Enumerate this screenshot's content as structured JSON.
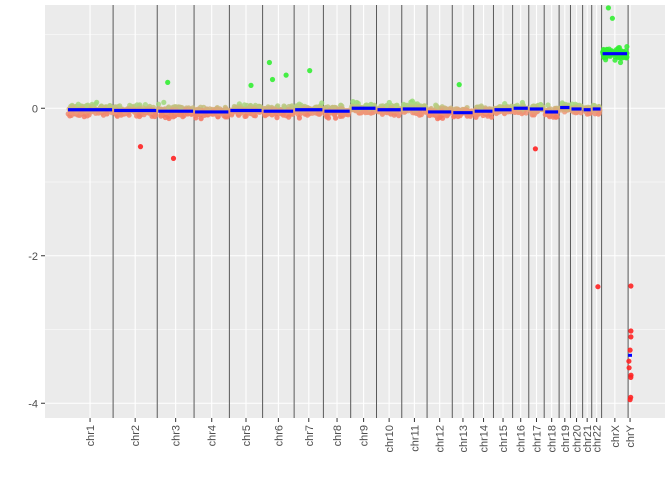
{
  "chart_data": {
    "type": "scatter",
    "title": "",
    "xlabel": "",
    "ylabel": "",
    "ylim": [
      -4.2,
      1.4
    ],
    "yticks": [
      -4,
      -2,
      0
    ],
    "grid": true,
    "legend": "none",
    "categories": [
      "chr1",
      "chr2",
      "chr3",
      "chr4",
      "chr5",
      "chr6",
      "chr7",
      "chr8",
      "chr9",
      "chr10",
      "chr11",
      "chr12",
      "chr13",
      "chr14",
      "chr15",
      "chr16",
      "chr17",
      "chr18",
      "chr19",
      "chr20",
      "chr21",
      "chr22",
      "chrX",
      "chrY"
    ],
    "segments": [
      {
        "chr": "chr1",
        "value": -0.02
      },
      {
        "chr": "chr2",
        "value": -0.03
      },
      {
        "chr": "chr3",
        "value": -0.04
      },
      {
        "chr": "chr4",
        "value": -0.05
      },
      {
        "chr": "chr5",
        "value": -0.03
      },
      {
        "chr": "chr6",
        "value": -0.04
      },
      {
        "chr": "chr7",
        "value": -0.02
      },
      {
        "chr": "chr8",
        "value": -0.04
      },
      {
        "chr": "chr9",
        "value": 0.0
      },
      {
        "chr": "chr10",
        "value": -0.02
      },
      {
        "chr": "chr11",
        "value": -0.01
      },
      {
        "chr": "chr12",
        "value": -0.05
      },
      {
        "chr": "chr13",
        "value": -0.06
      },
      {
        "chr": "chr14",
        "value": -0.04
      },
      {
        "chr": "chr15",
        "value": -0.02
      },
      {
        "chr": "chr16",
        "value": 0.0
      },
      {
        "chr": "chr17",
        "value": -0.01
      },
      {
        "chr": "chr18",
        "value": -0.05
      },
      {
        "chr": "chr19",
        "value": 0.01
      },
      {
        "chr": "chr20",
        "value": -0.01
      },
      {
        "chr": "chr21",
        "value": -0.02
      },
      {
        "chr": "chr22",
        "value": -0.01
      },
      {
        "chr": "chrX",
        "value": 0.74
      },
      {
        "chr": "chrY",
        "value": -3.35
      }
    ],
    "notable_points": [
      {
        "chr": "chr2",
        "value": -0.52
      },
      {
        "chr": "chr3",
        "value": 0.35
      },
      {
        "chr": "chr3",
        "value": -0.68
      },
      {
        "chr": "chr5",
        "value": 0.31
      },
      {
        "chr": "chr6",
        "value": 0.62
      },
      {
        "chr": "chr6",
        "value": 0.45
      },
      {
        "chr": "chr6",
        "value": 0.39
      },
      {
        "chr": "chr7",
        "value": 0.51
      },
      {
        "chr": "chr13",
        "value": 0.32
      },
      {
        "chr": "chr17",
        "value": -0.55
      },
      {
        "chr": "chr22",
        "value": -2.42
      },
      {
        "chr": "chrX",
        "value": 1.36
      },
      {
        "chr": "chrX",
        "value": 1.22
      },
      {
        "chr": "chrY",
        "value": -2.41
      },
      {
        "chr": "chrY",
        "value": -3.02
      },
      {
        "chr": "chrY",
        "value": -3.1
      },
      {
        "chr": "chrY",
        "value": -3.28
      },
      {
        "chr": "chrY",
        "value": -3.43
      },
      {
        "chr": "chrY",
        "value": -3.52
      },
      {
        "chr": "chrY",
        "value": -3.62
      },
      {
        "chr": "chrY",
        "value": -3.65
      },
      {
        "chr": "chrY",
        "value": -3.92
      },
      {
        "chr": "chrY",
        "value": -3.95
      }
    ],
    "colors": {
      "panel": "#ebebeb",
      "grid": "#ffffff",
      "separator": "#595959",
      "segment": "#0000ff",
      "gain": "#33ee33",
      "loss": "#ff2222"
    }
  }
}
